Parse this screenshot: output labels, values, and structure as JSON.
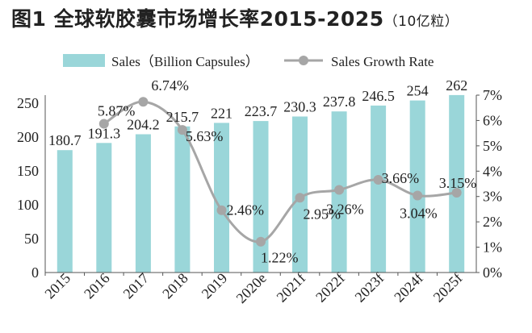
{
  "title": {
    "main": "图1  全球软胶囊市场增长率2015-2025",
    "unit": "（10亿粒）"
  },
  "colors": {
    "bar": "#9ad6d9",
    "line": "#a6a6a6",
    "text": "#222222"
  },
  "chart_data": {
    "type": "bar",
    "title": "图1  全球软胶囊市场增长率2015-2025（10亿粒）",
    "categories": [
      "2015",
      "2016",
      "2017",
      "2018",
      "2019",
      "2020e",
      "2021f",
      "2022f",
      "2023f",
      "2024f",
      "2025f"
    ],
    "series": [
      {
        "name": "Sales（Billion Capsules）",
        "type": "bar",
        "axis": "left",
        "values": [
          180.7,
          191.3,
          204.2,
          215.7,
          221,
          223.7,
          230.3,
          237.8,
          246.5,
          254,
          262
        ],
        "labels": [
          "180.7",
          "191.3",
          "204.2",
          "215.7",
          "221",
          "223.7",
          "230.3",
          "237.8",
          "246.5",
          "254",
          "262"
        ]
      },
      {
        "name": "Sales Growth Rate",
        "type": "line",
        "axis": "right",
        "x": [
          "2016",
          "2017",
          "2018",
          "2019",
          "2020e",
          "2021f",
          "2022f",
          "2023f",
          "2024f",
          "2025f"
        ],
        "values": [
          5.87,
          6.74,
          5.63,
          2.46,
          1.22,
          2.95,
          3.26,
          3.66,
          3.04,
          3.15
        ],
        "labels": [
          "5.87%",
          "6.74%",
          "5.63%",
          "2.46%",
          "1.22%",
          "2.95%",
          "3.26%",
          "3.66%",
          "3.04%",
          "3.15%"
        ]
      }
    ],
    "y_left": {
      "lim": [
        0,
        250
      ],
      "ticks": [
        "0",
        "50",
        "100",
        "150",
        "200",
        "250"
      ]
    },
    "y_right": {
      "lim": [
        0,
        7
      ],
      "ticks": [
        "0%",
        "1%",
        "2%",
        "3%",
        "4%",
        "5%",
        "6%",
        "7%"
      ]
    },
    "legend": "top",
    "grid": false
  }
}
